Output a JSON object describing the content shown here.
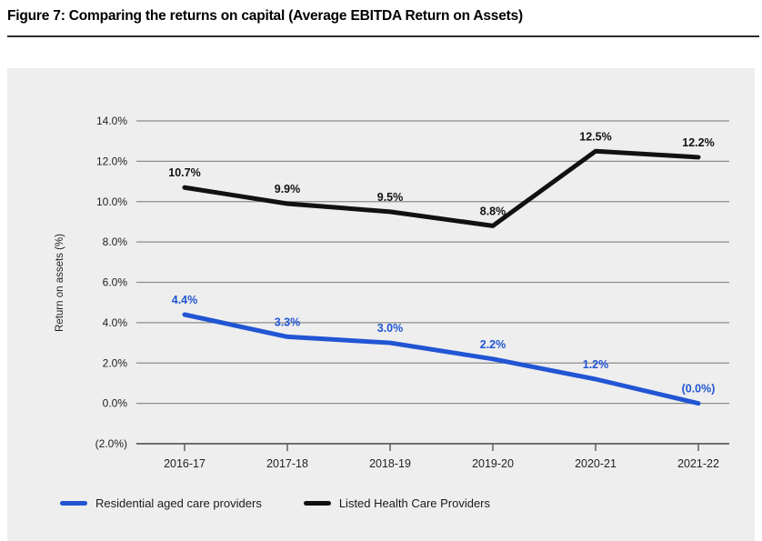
{
  "figure": {
    "title": "Figure 7: Comparing the returns on capital (Average EBITDA Return on Assets)"
  },
  "chart_data": {
    "type": "line",
    "title": "Figure 7: Comparing the returns on capital (Average EBITDA Return on Assets)",
    "categories": [
      "2016-17",
      "2017-18",
      "2018-19",
      "2019-20",
      "2020-21",
      "2021-22"
    ],
    "series": [
      {
        "name": "Residential aged care providers",
        "color": "#2155d4",
        "values": [
          4.4,
          3.3,
          3.0,
          2.2,
          1.2,
          0.0
        ],
        "point_labels": [
          "4.4%",
          "3.3%",
          "3.0%",
          "2.2%",
          "1.2%",
          "(0.0%)"
        ]
      },
      {
        "name": "Listed Health Care Providers",
        "color": "#111111",
        "values": [
          10.7,
          9.9,
          9.5,
          8.8,
          12.5,
          12.2
        ],
        "point_labels": [
          "10.7%",
          "9.9%",
          "9.5%",
          "8.8%",
          "12.5%",
          "12.2%"
        ]
      }
    ],
    "xlabel": "",
    "ylabel": "Return on assets (%)",
    "ylim": [
      -2,
      14
    ],
    "ytick_step": 2,
    "ytick_labels": [
      "(2.0%)",
      "0.0%",
      "2.0%",
      "4.0%",
      "6.0%",
      "8.0%",
      "10.0%",
      "12.0%",
      "14.0%"
    ],
    "grid": true,
    "legend_position": "bottom-left",
    "colors": {
      "panel_bg": "#eeeeee",
      "gridline": "#8c8c8c",
      "axis": "#6f6f6f",
      "tick": "#555555",
      "text": "#222222"
    }
  }
}
